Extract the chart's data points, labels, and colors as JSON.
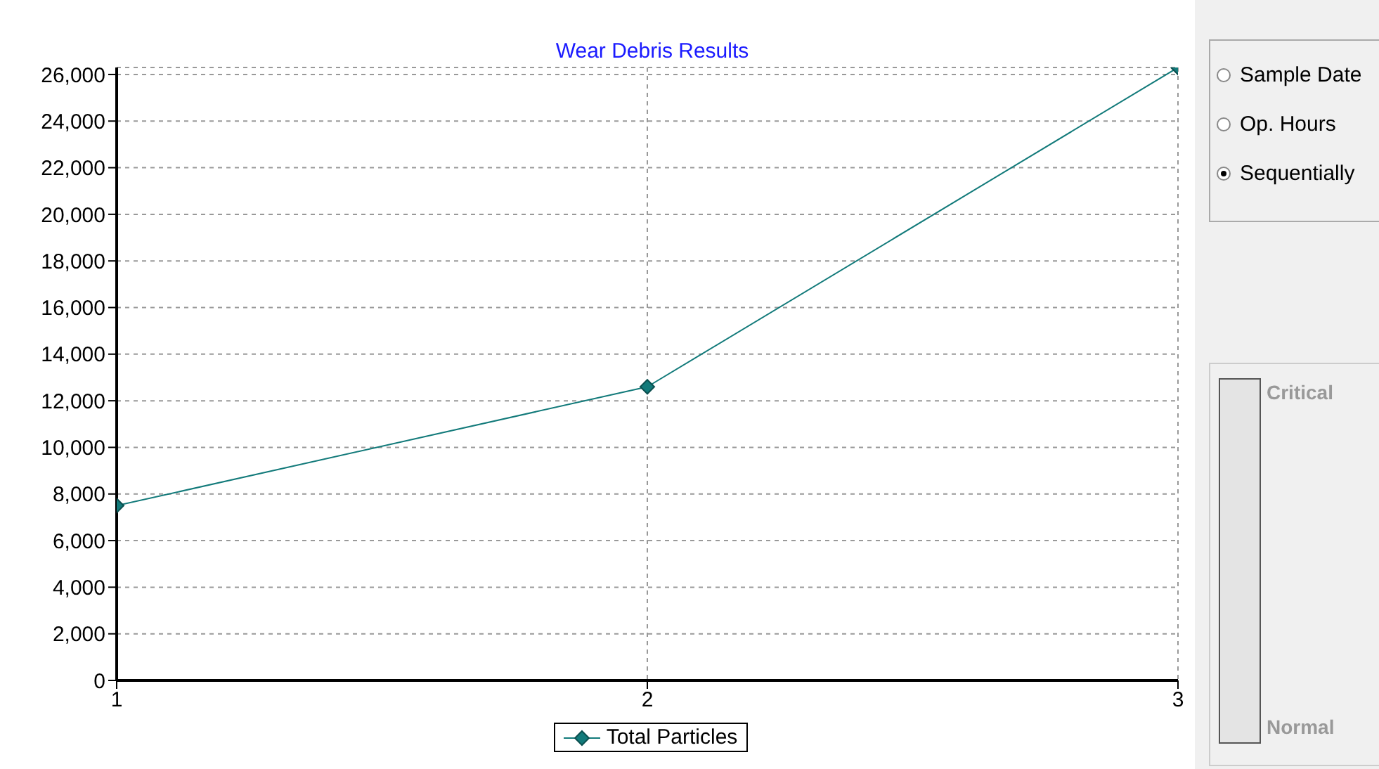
{
  "chart_data": [
    {
      "type": "line",
      "title": "Wear Debris Results",
      "x": [
        1,
        2,
        3
      ],
      "series": [
        {
          "name": "Total Particles",
          "color": "#127a7a",
          "values": [
            7500,
            12600,
            26300
          ]
        }
      ],
      "xlim": [
        1,
        3
      ],
      "xticks": [
        1,
        2,
        3
      ],
      "ylim": [
        0,
        26300
      ],
      "yticks": [
        0,
        {
          "value": 2000,
          "label": "2,000"
        },
        {
          "value": 4000,
          "label": "4,000"
        },
        {
          "value": 6000,
          "label": "6,000"
        },
        {
          "value": 8000,
          "label": "8,000"
        },
        {
          "value": 10000,
          "label": "10,000"
        },
        {
          "value": 12000,
          "label": "12,000"
        },
        {
          "value": 14000,
          "label": "14,000"
        },
        {
          "value": 16000,
          "label": "16,000"
        },
        {
          "value": 18000,
          "label": "18,000"
        },
        {
          "value": 20000,
          "label": "20,000"
        },
        {
          "value": 22000,
          "label": "22,000"
        },
        {
          "value": 24000,
          "label": "24,000"
        },
        {
          "value": 26000,
          "label": "26,000"
        }
      ],
      "grid": true,
      "legend": "bottom",
      "marker": "diamond",
      "line_style": "solid"
    },
    {
      "type": "other",
      "annotations": [
        "Sample Date",
        "Op. Hours",
        "Sequentially",
        "Critical",
        "Normal"
      ]
    }
  ]
}
